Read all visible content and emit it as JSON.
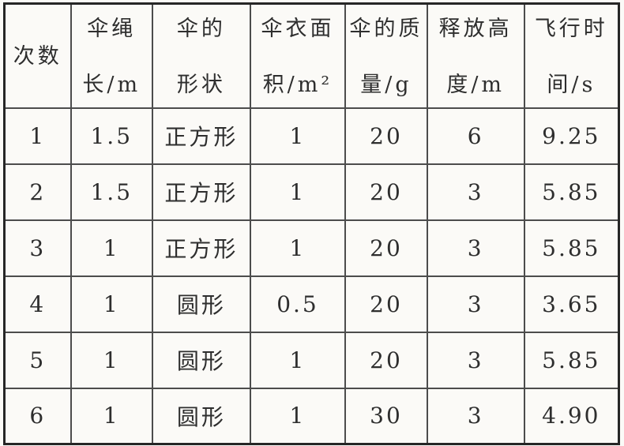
{
  "colors": {
    "background": "#fbfaf7",
    "outer_border": "#262626",
    "grid_line": "#4c4c4c",
    "text": "#2e2e2e"
  },
  "table": {
    "columns": [
      {
        "line1": "次数",
        "line2": ""
      },
      {
        "line1": "伞绳",
        "line2": "长/m"
      },
      {
        "line1": "伞的",
        "line2": "形状"
      },
      {
        "line1": "伞衣面",
        "line2": "积/m²"
      },
      {
        "line1": "伞的质",
        "line2": "量/g"
      },
      {
        "line1": "释放高",
        "line2": "度/m"
      },
      {
        "line1": "飞行时",
        "line2": "间/s"
      }
    ],
    "rows": [
      [
        "1",
        "1.5",
        "正方形",
        "1",
        "20",
        "6",
        "9.25"
      ],
      [
        "2",
        "1.5",
        "正方形",
        "1",
        "20",
        "3",
        "5.85"
      ],
      [
        "3",
        "1",
        "正方形",
        "1",
        "20",
        "3",
        "5.85"
      ],
      [
        "4",
        "1",
        "圆形",
        "0.5",
        "20",
        "3",
        "3.65"
      ],
      [
        "5",
        "1",
        "圆形",
        "1",
        "20",
        "3",
        "5.85"
      ],
      [
        "6",
        "1",
        "圆形",
        "1",
        "30",
        "3",
        "4.90"
      ]
    ]
  },
  "chart_data": {
    "type": "table",
    "title": "",
    "columns": [
      "次数",
      "伞绳长/m",
      "伞的形状",
      "伞衣面积/m²",
      "伞的质量/g",
      "释放高度/m",
      "飞行时间/s"
    ],
    "rows": [
      [
        1,
        1.5,
        "正方形",
        1,
        20,
        6,
        9.25
      ],
      [
        2,
        1.5,
        "正方形",
        1,
        20,
        3,
        5.85
      ],
      [
        3,
        1,
        "正方形",
        1,
        20,
        3,
        5.85
      ],
      [
        4,
        1,
        "圆形",
        0.5,
        20,
        3,
        3.65
      ],
      [
        5,
        1,
        "圆形",
        1,
        20,
        3,
        5.85
      ],
      [
        6,
        1,
        "圆形",
        1,
        30,
        3,
        4.9
      ]
    ]
  }
}
